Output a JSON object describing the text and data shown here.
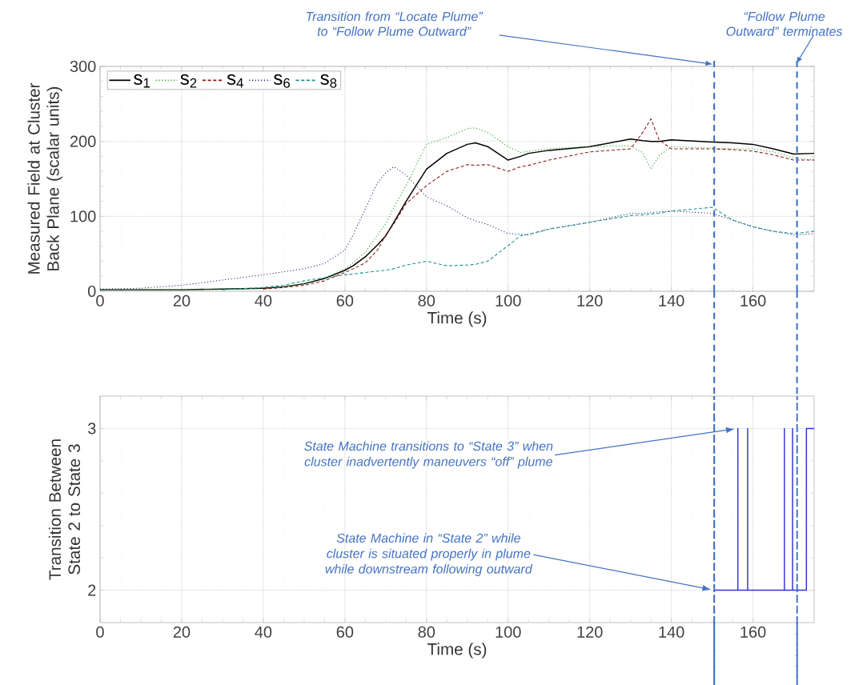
{
  "chart_data": [
    {
      "type": "line",
      "xlabel": "Time (s)",
      "ylabel": "Measured Field at Cluster Back Plane (scalar units)",
      "x": [
        0,
        10,
        20,
        30,
        40,
        45,
        50,
        55,
        60,
        62,
        65,
        68,
        70,
        72,
        75,
        80,
        85,
        90,
        92,
        95,
        100,
        103,
        105,
        110,
        120,
        130,
        133,
        135,
        137,
        140,
        150,
        155,
        160,
        165,
        170,
        175
      ],
      "series": [
        {
          "name": "s$_{1}$",
          "color": "#000000",
          "line_style": "solid",
          "values": [
            2,
            2,
            2,
            3,
            4,
            6,
            10,
            17,
            28,
            34,
            46,
            62,
            74,
            92,
            120,
            163,
            184,
            196,
            198,
            193,
            175,
            180,
            184,
            188,
            193,
            203,
            201,
            200,
            200,
            202,
            199,
            198,
            196,
            190,
            183,
            184
          ]
        },
        {
          "name": "s$_{2}$",
          "color": "#1a9a1a",
          "line_style": "dotted",
          "values": [
            2,
            2,
            2,
            3,
            4,
            6,
            10,
            18,
            30,
            38,
            52,
            75,
            90,
            112,
            141,
            196,
            205,
            217,
            218,
            212,
            193,
            185,
            187,
            190,
            193,
            194,
            185,
            163,
            181,
            193,
            191,
            190,
            190,
            186,
            178,
            175
          ]
        },
        {
          "name": "s$_{4}$",
          "color": "#8b1a1a",
          "line_style": "dashed",
          "values": [
            null,
            null,
            null,
            null,
            3,
            5,
            8,
            14,
            25,
            30,
            38,
            55,
            75,
            90,
            117,
            141,
            160,
            169,
            168,
            169,
            160,
            166,
            168,
            175,
            186,
            190,
            212,
            230,
            202,
            190,
            190,
            189,
            187,
            182,
            175,
            175
          ]
        },
        {
          "name": "s$_{6}$",
          "color": "#1a1a6e",
          "line_style": "dotted",
          "values": [
            3,
            4,
            8,
            15,
            22,
            26,
            30,
            37,
            55,
            75,
            110,
            145,
            158,
            166,
            155,
            126,
            114,
            98,
            94,
            89,
            77,
            76,
            75,
            83,
            92,
            104,
            104,
            105,
            106,
            107,
            104,
            95,
            86,
            80,
            75,
            77
          ]
        },
        {
          "name": "s$_{8}$",
          "color": "#1a9090",
          "line_style": "dashed",
          "values": [
            null,
            null,
            null,
            2,
            5,
            8,
            14,
            18,
            22,
            23,
            25,
            27,
            28,
            30,
            35,
            40,
            34,
            35,
            36,
            40,
            61,
            74,
            76,
            83,
            92,
            101,
            102,
            103,
            104,
            107,
            112,
            95,
            86,
            80,
            77,
            80
          ]
        }
      ],
      "xlim": [
        0,
        175
      ],
      "xticks": [
        0,
        20,
        40,
        60,
        80,
        100,
        120,
        140,
        160
      ],
      "ylim": [
        0,
        300
      ],
      "yticks": [
        0,
        100,
        200,
        300
      ],
      "grid": true,
      "legend": "top left",
      "ref_lines": [
        {
          "axis": "x",
          "value": 150.5,
          "label": "Transition from “Locate Plume” to “Follow Plume Outward”",
          "color": "#4472c4",
          "line_style": "dashed"
        },
        {
          "axis": "x",
          "value": 170.8,
          "label": "“Follow Plume Outward” terminates",
          "color": "#4472c4",
          "line_style": "dashed"
        }
      ]
    },
    {
      "type": "line",
      "xlabel": "Time (s)",
      "ylabel": "Transition Between State 2 to State 3",
      "series": [
        {
          "color": "#3333dd",
          "x": [
            150.5,
            156.3,
            156.3,
            156.3,
            158.7,
            158.7,
            158.7,
            167.7,
            167.7,
            167.7,
            169.7,
            169.7,
            169.7,
            173.1,
            173.1,
            175
          ],
          "values": [
            2,
            2,
            3,
            2,
            2,
            3,
            2,
            2,
            3,
            2,
            2,
            3,
            2,
            2,
            3,
            3
          ]
        }
      ],
      "xlim": [
        0,
        175
      ],
      "xticks": [
        0,
        20,
        40,
        60,
        80,
        100,
        120,
        140,
        160
      ],
      "ylim": [
        1.8,
        3.2
      ],
      "yticks": [
        2,
        3
      ],
      "grid": true,
      "ref_lines": [
        {
          "axis": "x",
          "value": 150.5,
          "color": "#4472c4",
          "line_style": "dashed"
        },
        {
          "axis": "x",
          "value": 170.8,
          "color": "#4472c4",
          "line_style": "dashed"
        }
      ],
      "annotations": [
        "State Machine transitions to “State 3” when cluster inadvertently maneuvers “off” plume",
        "State Machine in “State 2” while cluster is situated properly in plume while downstream following outward"
      ]
    }
  ]
}
